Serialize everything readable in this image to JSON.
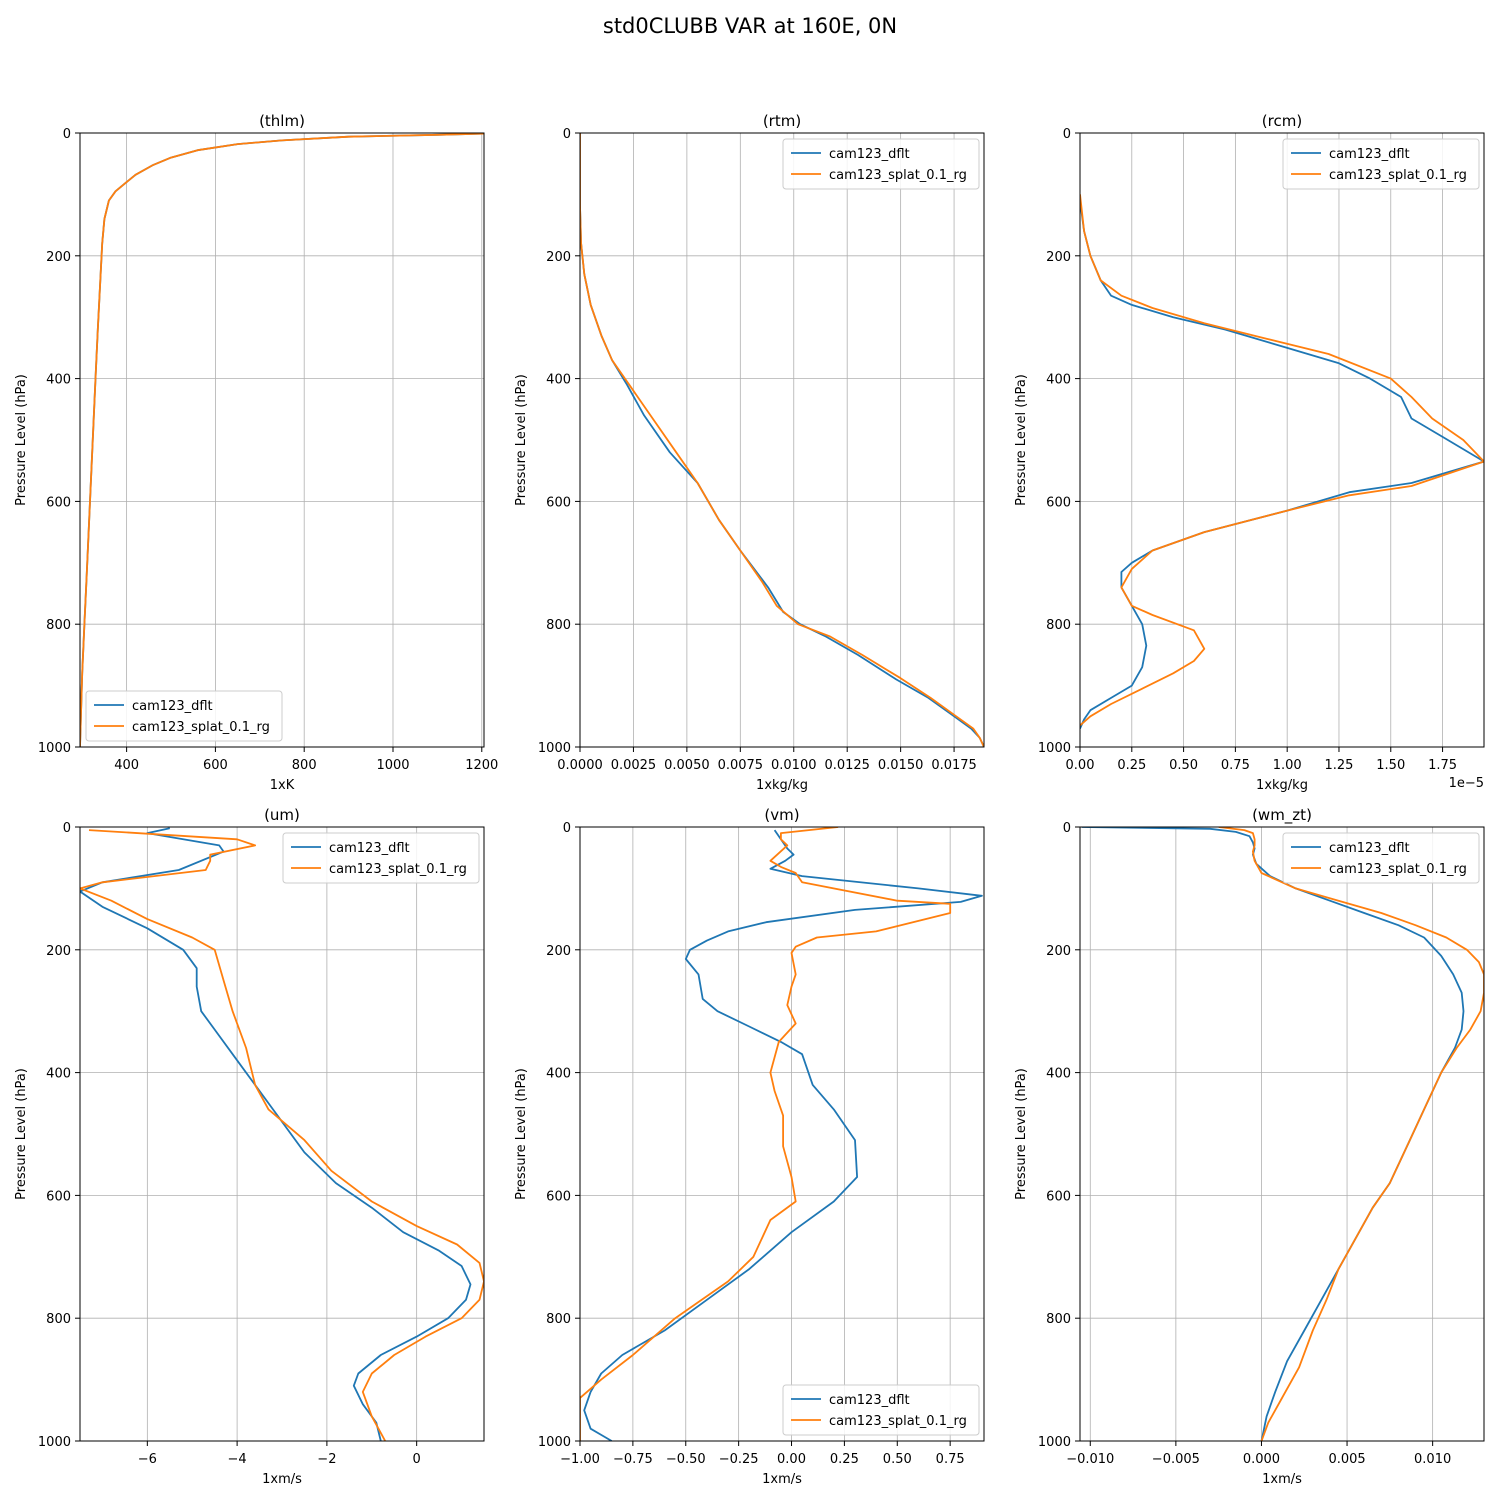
{
  "suptitle": "std0CLUBB VAR at 160E, 0N",
  "colors": {
    "dflt": "#1f77b4",
    "splat": "#ff7f0e",
    "grid": "#b0b0b0"
  },
  "chart_data": [
    {
      "type": "line",
      "title": "(thlm)",
      "xlabel": "1xK",
      "ylabel": "Pressure Level (hPa)",
      "xlim": [
        295,
        1205
      ],
      "ylim": [
        1000,
        0
      ],
      "y_inverted": true,
      "xticks": [
        400,
        600,
        800,
        1000,
        1200
      ],
      "xtick_labels": [
        "400",
        "600",
        "800",
        "1000",
        "1200"
      ],
      "yticks": [
        0,
        200,
        400,
        600,
        800,
        1000
      ],
      "ytick_labels": [
        "0",
        "200",
        "400",
        "600",
        "800",
        "1000"
      ],
      "offset_text": "",
      "legend": "lower left",
      "grid": true,
      "series": [
        {
          "name": "cam123_dflt",
          "x": [
            1205,
            1100,
            900,
            750,
            650,
            560,
            500,
            460,
            420,
            400,
            375,
            360,
            350,
            345,
            340,
            335,
            330,
            325,
            320,
            315,
            310,
            305,
            300,
            297,
            295
          ],
          "y": [
            1,
            3,
            6,
            12,
            18,
            28,
            40,
            52,
            68,
            80,
            95,
            110,
            140,
            180,
            250,
            320,
            400,
            480,
            560,
            640,
            720,
            800,
            880,
            950,
            1000
          ]
        },
        {
          "name": "cam123_splat_0.1_rg",
          "x": [
            1205,
            1100,
            900,
            750,
            650,
            560,
            500,
            460,
            420,
            400,
            375,
            360,
            350,
            345,
            340,
            335,
            330,
            325,
            320,
            315,
            310,
            305,
            300,
            297,
            295
          ],
          "y": [
            1,
            3,
            6,
            12,
            18,
            28,
            40,
            52,
            68,
            80,
            95,
            110,
            140,
            180,
            250,
            320,
            400,
            480,
            560,
            640,
            720,
            800,
            880,
            950,
            1000
          ]
        }
      ]
    },
    {
      "type": "line",
      "title": "(rtm)",
      "xlabel": "1xkg/kg",
      "ylabel": "Pressure Level (hPa)",
      "xlim": [
        0,
        0.0189
      ],
      "ylim": [
        1000,
        0
      ],
      "y_inverted": true,
      "xticks": [
        0,
        0.0025,
        0.005,
        0.0075,
        0.01,
        0.0125,
        0.015,
        0.0175
      ],
      "xtick_labels": [
        "0.0000",
        "0.0025",
        "0.0050",
        "0.0075",
        "0.0100",
        "0.0125",
        "0.0150",
        "0.0175"
      ],
      "yticks": [
        0,
        200,
        400,
        600,
        800,
        1000
      ],
      "ytick_labels": [
        "0",
        "200",
        "400",
        "600",
        "800",
        "1000"
      ],
      "offset_text": "",
      "legend": "upper right",
      "grid": true,
      "series": [
        {
          "name": "cam123_dflt",
          "x": [
            0,
            0,
            5e-05,
            0.0002,
            0.0005,
            0.001,
            0.0015,
            0.0022,
            0.003,
            0.0042,
            0.0055,
            0.0065,
            0.0075,
            0.0088,
            0.0095,
            0.0103,
            0.0115,
            0.013,
            0.0148,
            0.0163,
            0.0175,
            0.0183,
            0.0187,
            0.0189
          ],
          "y": [
            0,
            120,
            180,
            230,
            280,
            330,
            370,
            410,
            460,
            520,
            570,
            630,
            680,
            740,
            780,
            800,
            820,
            850,
            890,
            920,
            950,
            970,
            985,
            1000
          ]
        },
        {
          "name": "cam123_splat_0.1_rg",
          "x": [
            0,
            0,
            5e-05,
            0.0002,
            0.0005,
            0.001,
            0.0015,
            0.0023,
            0.0032,
            0.0045,
            0.0055,
            0.0065,
            0.0075,
            0.0085,
            0.0092,
            0.0102,
            0.0117,
            0.0132,
            0.015,
            0.0164,
            0.0176,
            0.0184,
            0.0187,
            0.0189
          ],
          "y": [
            0,
            120,
            180,
            230,
            280,
            330,
            370,
            410,
            455,
            520,
            570,
            630,
            680,
            730,
            770,
            800,
            820,
            850,
            888,
            920,
            950,
            970,
            985,
            1000
          ]
        }
      ]
    },
    {
      "type": "line",
      "title": "(rcm)",
      "xlabel": "1xkg/kg",
      "ylabel": "Pressure Level (hPa)",
      "xlim": [
        0,
        1.95
      ],
      "ylim": [
        1000,
        0
      ],
      "y_inverted": true,
      "xticks": [
        0,
        0.25,
        0.5,
        0.75,
        1.0,
        1.25,
        1.5,
        1.75
      ],
      "xtick_labels": [
        "0.00",
        "0.25",
        "0.50",
        "0.75",
        "1.00",
        "1.25",
        "1.50",
        "1.75"
      ],
      "yticks": [
        0,
        200,
        400,
        600,
        800,
        1000
      ],
      "ytick_labels": [
        "0",
        "200",
        "400",
        "600",
        "800",
        "1000"
      ],
      "offset_text": "1e−5",
      "legend": "upper right",
      "grid": true,
      "series": [
        {
          "name": "cam123_dflt",
          "x": [
            0,
            0.02,
            0.05,
            0.1,
            0.15,
            0.25,
            0.45,
            0.7,
            1.0,
            1.25,
            1.4,
            1.5,
            1.55,
            1.6,
            1.75,
            1.95,
            1.6,
            1.3,
            1.0,
            0.6,
            0.35,
            0.25,
            0.2,
            0.2,
            0.25,
            0.3,
            0.32,
            0.3,
            0.25,
            0.15,
            0.05,
            0.02,
            0
          ],
          "y": [
            110,
            160,
            200,
            240,
            265,
            280,
            300,
            320,
            350,
            375,
            400,
            420,
            430,
            465,
            495,
            535,
            570,
            585,
            615,
            650,
            680,
            700,
            715,
            740,
            770,
            800,
            835,
            870,
            900,
            920,
            940,
            955,
            970
          ]
        },
        {
          "name": "cam123_splat_0.1_rg",
          "x": [
            0,
            0.02,
            0.05,
            0.1,
            0.2,
            0.35,
            0.6,
            0.9,
            1.2,
            1.5,
            1.6,
            1.7,
            1.85,
            1.95,
            1.6,
            1.3,
            1.0,
            0.6,
            0.35,
            0.25,
            0.2,
            0.25,
            0.35,
            0.55,
            0.6,
            0.55,
            0.45,
            0.3,
            0.15,
            0.05,
            0
          ],
          "y": [
            100,
            160,
            200,
            240,
            265,
            285,
            310,
            335,
            360,
            400,
            430,
            465,
            500,
            535,
            575,
            590,
            615,
            650,
            680,
            710,
            740,
            770,
            785,
            810,
            840,
            860,
            880,
            905,
            930,
            950,
            965
          ]
        }
      ]
    },
    {
      "type": "line",
      "title": "(um)",
      "xlabel": "1xm/s",
      "ylabel": "Pressure Level (hPa)",
      "xlim": [
        -7.5,
        1.5
      ],
      "ylim": [
        1000,
        0
      ],
      "y_inverted": true,
      "xticks": [
        -6,
        -4,
        -2,
        0
      ],
      "xtick_labels": [
        "−6",
        "−4",
        "−2",
        "0"
      ],
      "yticks": [
        0,
        200,
        400,
        600,
        800,
        1000
      ],
      "ytick_labels": [
        "0",
        "200",
        "400",
        "600",
        "800",
        "1000"
      ],
      "offset_text": "",
      "legend": "upper right",
      "grid": true,
      "series": [
        {
          "name": "cam123_dflt",
          "x": [
            -5.5,
            -6.0,
            -4.4,
            -4.3,
            -5.3,
            -7.0,
            -7.5,
            -7.0,
            -6.0,
            -5.2,
            -4.9,
            -4.9,
            -4.8,
            -4.5,
            -4.0,
            -3.2,
            -2.5,
            -1.8,
            -1.0,
            -0.3,
            0.5,
            1.0,
            1.2,
            1.1,
            0.7,
            0.0,
            -0.8,
            -1.3,
            -1.4,
            -1.2,
            -0.9,
            -0.8
          ],
          "y": [
            2,
            10,
            30,
            40,
            70,
            90,
            105,
            130,
            165,
            200,
            230,
            260,
            300,
            330,
            380,
            460,
            530,
            580,
            620,
            660,
            690,
            715,
            745,
            770,
            800,
            830,
            860,
            890,
            910,
            940,
            970,
            1000
          ]
        },
        {
          "name": "cam123_splat_0.1_rg",
          "x": [
            -7.3,
            -4.0,
            -3.6,
            -4.6,
            -4.6,
            -4.7,
            -7.0,
            -7.5,
            -6.8,
            -6.0,
            -5.0,
            -4.5,
            -4.3,
            -4.1,
            -3.8,
            -3.6,
            -3.3,
            -2.5,
            -1.9,
            -1.0,
            0.0,
            0.9,
            1.4,
            1.5,
            1.4,
            1.0,
            0.2,
            -0.5,
            -1.0,
            -1.2,
            -1.0,
            -0.7
          ],
          "y": [
            5,
            20,
            30,
            45,
            55,
            70,
            90,
            100,
            120,
            150,
            180,
            200,
            250,
            300,
            360,
            420,
            460,
            510,
            560,
            610,
            650,
            680,
            710,
            740,
            770,
            800,
            830,
            860,
            890,
            920,
            960,
            1000
          ]
        }
      ]
    },
    {
      "type": "line",
      "title": "(vm)",
      "xlabel": "1xm/s",
      "ylabel": "Pressure Level (hPa)",
      "xlim": [
        -1.0,
        0.91
      ],
      "ylim": [
        1000,
        0
      ],
      "y_inverted": true,
      "xticks": [
        -1.0,
        -0.75,
        -0.5,
        -0.25,
        0.0,
        0.25,
        0.5,
        0.75
      ],
      "xtick_labels": [
        "−1.00",
        "−0.75",
        "−0.50",
        "−0.25",
        "0.00",
        "0.25",
        "0.50",
        "0.75"
      ],
      "yticks": [
        0,
        200,
        400,
        600,
        800,
        1000
      ],
      "ytick_labels": [
        "0",
        "200",
        "400",
        "600",
        "800",
        "1000"
      ],
      "offset_text": "",
      "legend": "lower right",
      "grid": true,
      "series": [
        {
          "name": "cam123_dflt",
          "x": [
            -0.08,
            -0.05,
            -0.02,
            0.01,
            -0.03,
            -0.1,
            0.05,
            0.6,
            0.9,
            0.8,
            0.3,
            -0.12,
            -0.3,
            -0.4,
            -0.48,
            -0.5,
            -0.44,
            -0.42,
            -0.35,
            -0.2,
            -0.05,
            0.05,
            0.1,
            0.2,
            0.3,
            0.31,
            0.2,
            0.0,
            -0.2,
            -0.4,
            -0.6,
            -0.8,
            -0.9,
            -0.95,
            -0.98,
            -0.95,
            -0.9,
            -0.85
          ],
          "y": [
            5,
            20,
            35,
            45,
            55,
            68,
            80,
            100,
            112,
            122,
            135,
            155,
            170,
            185,
            200,
            215,
            240,
            280,
            300,
            325,
            350,
            370,
            420,
            460,
            510,
            570,
            610,
            660,
            720,
            770,
            820,
            860,
            890,
            920,
            950,
            980,
            990,
            1000
          ]
        },
        {
          "name": "cam123_splat_0.1_rg",
          "x": [
            0.22,
            -0.05,
            -0.05,
            -0.02,
            -0.1,
            -0.05,
            0.02,
            0.05,
            0.5,
            0.75,
            0.75,
            0.4,
            0.12,
            0.02,
            0.0,
            0.02,
            0.0,
            -0.02,
            0.02,
            -0.06,
            -0.1,
            -0.08,
            -0.04,
            -0.04,
            0.0,
            0.02,
            -0.1,
            -0.18,
            -0.3,
            -0.55,
            -0.75,
            -0.9,
            -1.0,
            -1.0,
            -1.0
          ],
          "y": [
            0,
            10,
            20,
            30,
            55,
            65,
            75,
            90,
            120,
            125,
            140,
            170,
            180,
            195,
            205,
            240,
            260,
            290,
            320,
            350,
            400,
            430,
            470,
            520,
            570,
            610,
            640,
            700,
            740,
            800,
            860,
            900,
            930,
            960,
            1000
          ]
        }
      ]
    },
    {
      "type": "line",
      "title": "(wm_zt)",
      "xlabel": "1xm/s",
      "ylabel": "Pressure Level (hPa)",
      "xlim": [
        -0.0106,
        0.013
      ],
      "ylim": [
        1000,
        0
      ],
      "y_inverted": true,
      "xticks": [
        -0.01,
        -0.005,
        0.0,
        0.005,
        0.01
      ],
      "xtick_labels": [
        "−0.010",
        "−0.005",
        "0.000",
        "0.005",
        "0.010"
      ],
      "yticks": [
        0,
        200,
        400,
        600,
        800,
        1000
      ],
      "ytick_labels": [
        "0",
        "200",
        "400",
        "600",
        "800",
        "1000"
      ],
      "offset_text": "",
      "legend": "upper right",
      "grid": true,
      "series": [
        {
          "name": "cam123_dflt",
          "x": [
            -0.0105,
            -0.003,
            -0.0015,
            -0.0007,
            -0.0005,
            -0.0004,
            -0.0005,
            -0.0003,
            0.0005,
            0.002,
            0.004,
            0.006,
            0.008,
            0.0095,
            0.0105,
            0.0112,
            0.0117,
            0.0118,
            0.0117,
            0.0113,
            0.0105,
            0.0095,
            0.0085,
            0.0075,
            0.0065,
            0.0055,
            0.0045,
            0.0035,
            0.0025,
            0.0015,
            0.0008,
            0.0003,
            0.0
          ],
          "y": [
            0,
            3,
            8,
            15,
            25,
            35,
            45,
            60,
            80,
            100,
            120,
            140,
            160,
            180,
            210,
            240,
            270,
            300,
            330,
            360,
            400,
            460,
            520,
            580,
            620,
            670,
            720,
            770,
            820,
            870,
            920,
            960,
            1000
          ]
        },
        {
          "name": "cam123_splat_0.1_rg",
          "x": [
            -0.0025,
            -0.001,
            -0.0005,
            -0.0004,
            -0.0004,
            -0.0005,
            -0.0004,
            0.0,
            0.002,
            0.0045,
            0.007,
            0.009,
            0.0108,
            0.012,
            0.0127,
            0.013,
            0.013,
            0.0128,
            0.0122,
            0.0114,
            0.0105,
            0.0095,
            0.0085,
            0.0075,
            0.0065,
            0.0055,
            0.0045,
            0.0038,
            0.003,
            0.0022,
            0.0012,
            0.0004,
            0.0
          ],
          "y": [
            0,
            5,
            10,
            20,
            30,
            40,
            55,
            75,
            100,
            120,
            140,
            160,
            180,
            200,
            220,
            240,
            270,
            300,
            330,
            360,
            400,
            460,
            520,
            580,
            620,
            670,
            720,
            770,
            820,
            880,
            930,
            970,
            1000
          ]
        }
      ]
    }
  ]
}
